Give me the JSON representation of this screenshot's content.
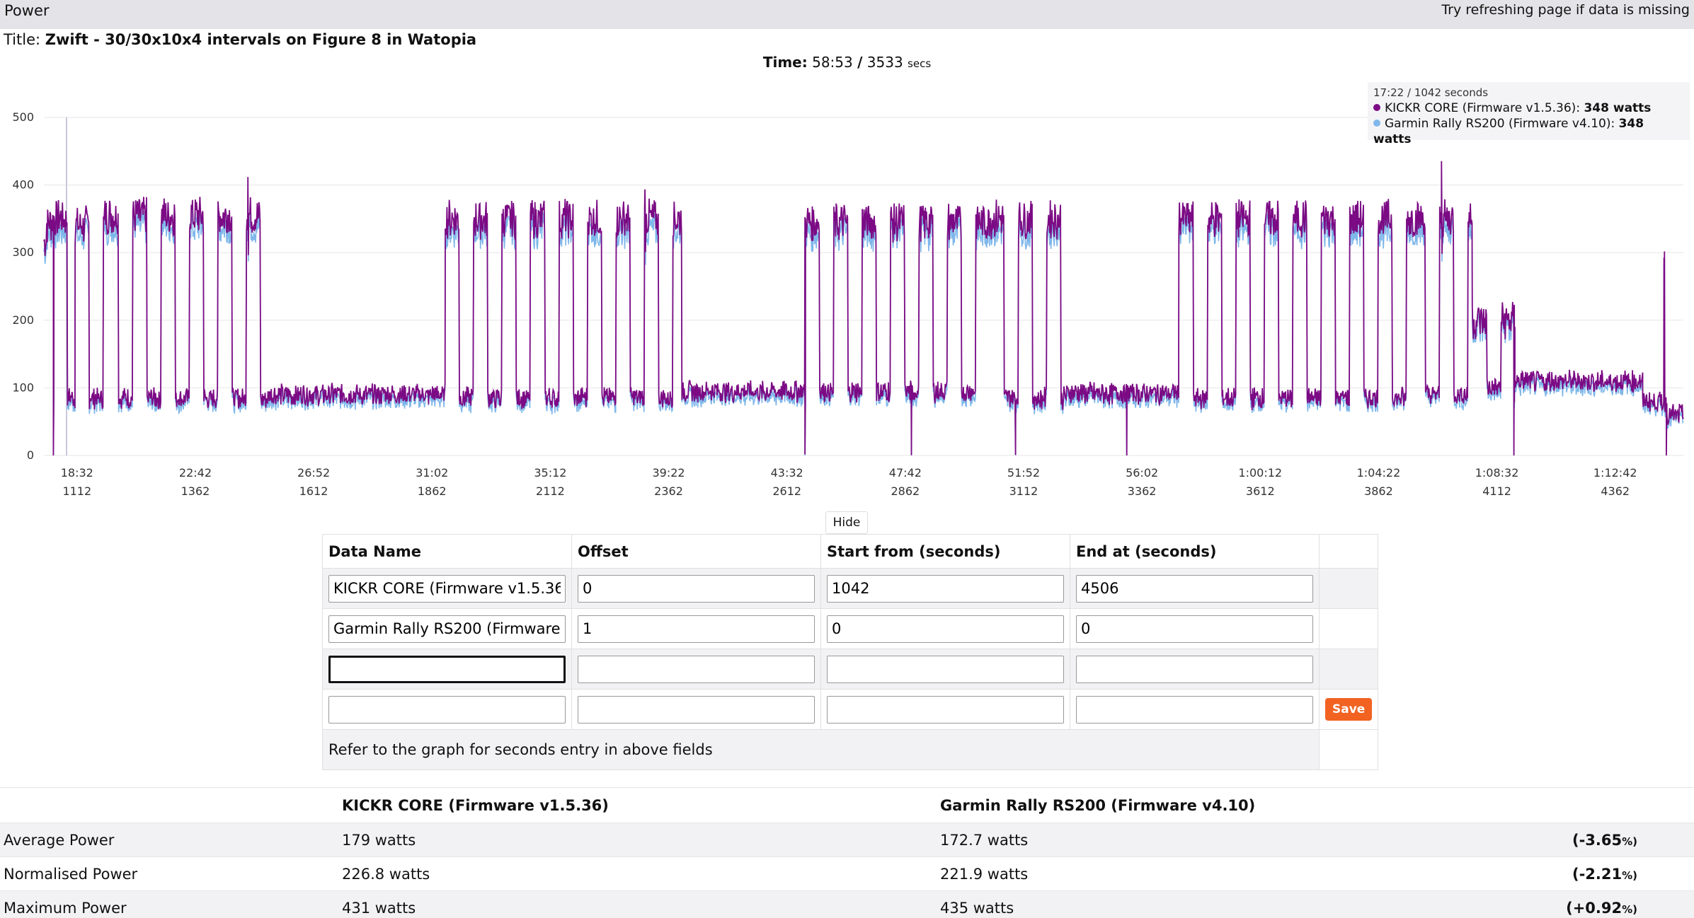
{
  "header": {
    "section_title": "Power",
    "refresh_hint": "Try refreshing page if data is missing"
  },
  "activity": {
    "title_label": "Title:",
    "title": "Zwift - 30/30x10x4 intervals on Figure 8 in Watopia"
  },
  "time": {
    "label": "Time:",
    "value": "58:53",
    "separator": "/",
    "seconds": "3533",
    "unit": "secs"
  },
  "tooltip": {
    "timestamp": "17:22 / 1042 seconds",
    "rows": [
      {
        "name": "KICKR CORE (Firmware v1.5.36):",
        "value": "348 watts",
        "color": "#7b0a84"
      },
      {
        "name": "Garmin Rally RS200 (Firmware v4.10):",
        "value": "348 watts",
        "color": "#7fb7ea"
      }
    ]
  },
  "chart_data": {
    "type": "line",
    "ylim": [
      0,
      500
    ],
    "yticks": [
      0,
      100,
      200,
      300,
      400,
      500
    ],
    "xlim": [
      1042,
      4506
    ],
    "xticks": [
      {
        "time": "18:32",
        "secs": "1112",
        "x": 1112
      },
      {
        "time": "22:42",
        "secs": "1362",
        "x": 1362
      },
      {
        "time": "26:52",
        "secs": "1612",
        "x": 1612
      },
      {
        "time": "31:02",
        "secs": "1862",
        "x": 1862
      },
      {
        "time": "35:12",
        "secs": "2112",
        "x": 2112
      },
      {
        "time": "39:22",
        "secs": "2362",
        "x": 2362
      },
      {
        "time": "43:32",
        "secs": "2612",
        "x": 2612
      },
      {
        "time": "47:42",
        "secs": "2862",
        "x": 2862
      },
      {
        "time": "51:52",
        "secs": "3112",
        "x": 3112
      },
      {
        "time": "56:02",
        "secs": "3362",
        "x": 3362
      },
      {
        "time": "1:00:12",
        "secs": "3612",
        "x": 3612
      },
      {
        "time": "1:04:22",
        "secs": "3862",
        "x": 3862
      },
      {
        "time": "1:08:32",
        "secs": "4112",
        "x": 4112
      },
      {
        "time": "1:12:42",
        "secs": "4362",
        "x": 4362
      }
    ],
    "grid": true,
    "series": [
      {
        "name": "KICKR CORE (Firmware v1.5.36)",
        "color": "#7b0a84"
      },
      {
        "name": "Garmin Rally RS200 (Firmware v4.10)",
        "color": "#7fb7ea"
      }
    ],
    "segments": [
      [
        1042,
        1048,
        320
      ],
      [
        1048,
        1050,
        340
      ],
      [
        1050,
        1062,
        345
      ],
      [
        1062,
        1108,
        350,
        85,
        10
      ],
      [
        1108,
        1170,
        340,
        85,
        1
      ],
      [
        1170,
        1520,
        355,
        85,
        8
      ],
      [
        1520,
        1890,
        90
      ],
      [
        1890,
        2390,
        350,
        85,
        10
      ],
      [
        2390,
        2650,
        95
      ],
      [
        2650,
        3040,
        345,
        95,
        8
      ],
      [
        3040,
        3202,
        350,
        85,
        4
      ],
      [
        3202,
        3440,
        92
      ],
      [
        3440,
        3930,
        350,
        85,
        10
      ],
      [
        3930,
        4060,
        350,
        90,
        2
      ],
      [
        4060,
        4150,
        200,
        100,
        1
      ],
      [
        4150,
        4420,
        110
      ],
      [
        4420,
        4470,
        80
      ],
      [
        4470,
        4506,
        60
      ]
    ],
    "min_points": [
      [
        1062,
        0
      ],
      [
        2650,
        0
      ],
      [
        2875,
        0
      ],
      [
        3095,
        0
      ],
      [
        3330,
        0
      ],
      [
        4148,
        0
      ],
      [
        4470,
        0
      ]
    ],
    "peaks": [
      [
        1473,
        410
      ],
      [
        2312,
        395
      ],
      [
        3995,
        432
      ],
      [
        4465,
        295
      ]
    ]
  },
  "edit_table": {
    "headers": [
      "Data Name",
      "Offset",
      "Start from (seconds)",
      "End at (seconds)"
    ],
    "rows": [
      [
        "KICKR CORE (Firmware v1.5.36)",
        "0",
        "1042",
        "4506"
      ],
      [
        "Garmin Rally RS200 (Firmware v4.10)",
        "1",
        "0",
        "0"
      ],
      [
        "",
        "",
        "",
        ""
      ],
      [
        "",
        "",
        "",
        ""
      ]
    ],
    "save_label": "Save",
    "hint": "Refer to the graph for seconds entry in above fields",
    "hide_label": "Hide"
  },
  "summary": {
    "columns": [
      "KICKR CORE (Firmware v1.5.36)",
      "Garmin Rally RS200 (Firmware v4.10)"
    ],
    "rows": [
      {
        "metric": "Average Power",
        "a": "179 watts",
        "b": "172.7 watts",
        "diff": "(-3.65",
        "pct": "%)"
      },
      {
        "metric": "Normalised Power",
        "a": "226.8 watts",
        "b": "221.9 watts",
        "diff": "(-2.21",
        "pct": "%)"
      },
      {
        "metric": "Maximum Power",
        "a": "431 watts",
        "b": "435 watts",
        "diff": "(+0.92",
        "pct": "%)"
      }
    ]
  }
}
